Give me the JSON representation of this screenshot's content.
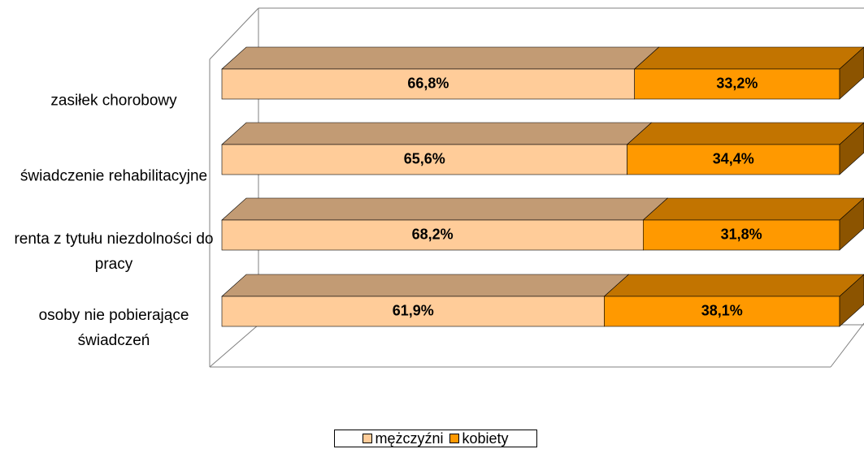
{
  "chart_data": {
    "type": "stacked-bar-3d",
    "categories": [
      "zasiłek chorobowy",
      "świadczenie rehabilitacyjne",
      "renta z tytułu niezdolności do pracy",
      "osoby nie pobierające świadczeń"
    ],
    "series": [
      {
        "name": "mężczyźni",
        "color": "#FFCC99",
        "values": [
          66.8,
          65.6,
          68.2,
          61.9
        ],
        "value_labels": [
          "66,8%",
          "65,6%",
          "68,2%",
          "61,9%"
        ]
      },
      {
        "name": "kobiety",
        "color": "#FF9900",
        "values": [
          33.2,
          34.4,
          31.8,
          38.1
        ],
        "value_labels": [
          "33,2%",
          "34,4%",
          "31,8%",
          "38,1%"
        ]
      }
    ],
    "xlim": [
      0,
      100
    ],
    "legend": "bottom"
  }
}
